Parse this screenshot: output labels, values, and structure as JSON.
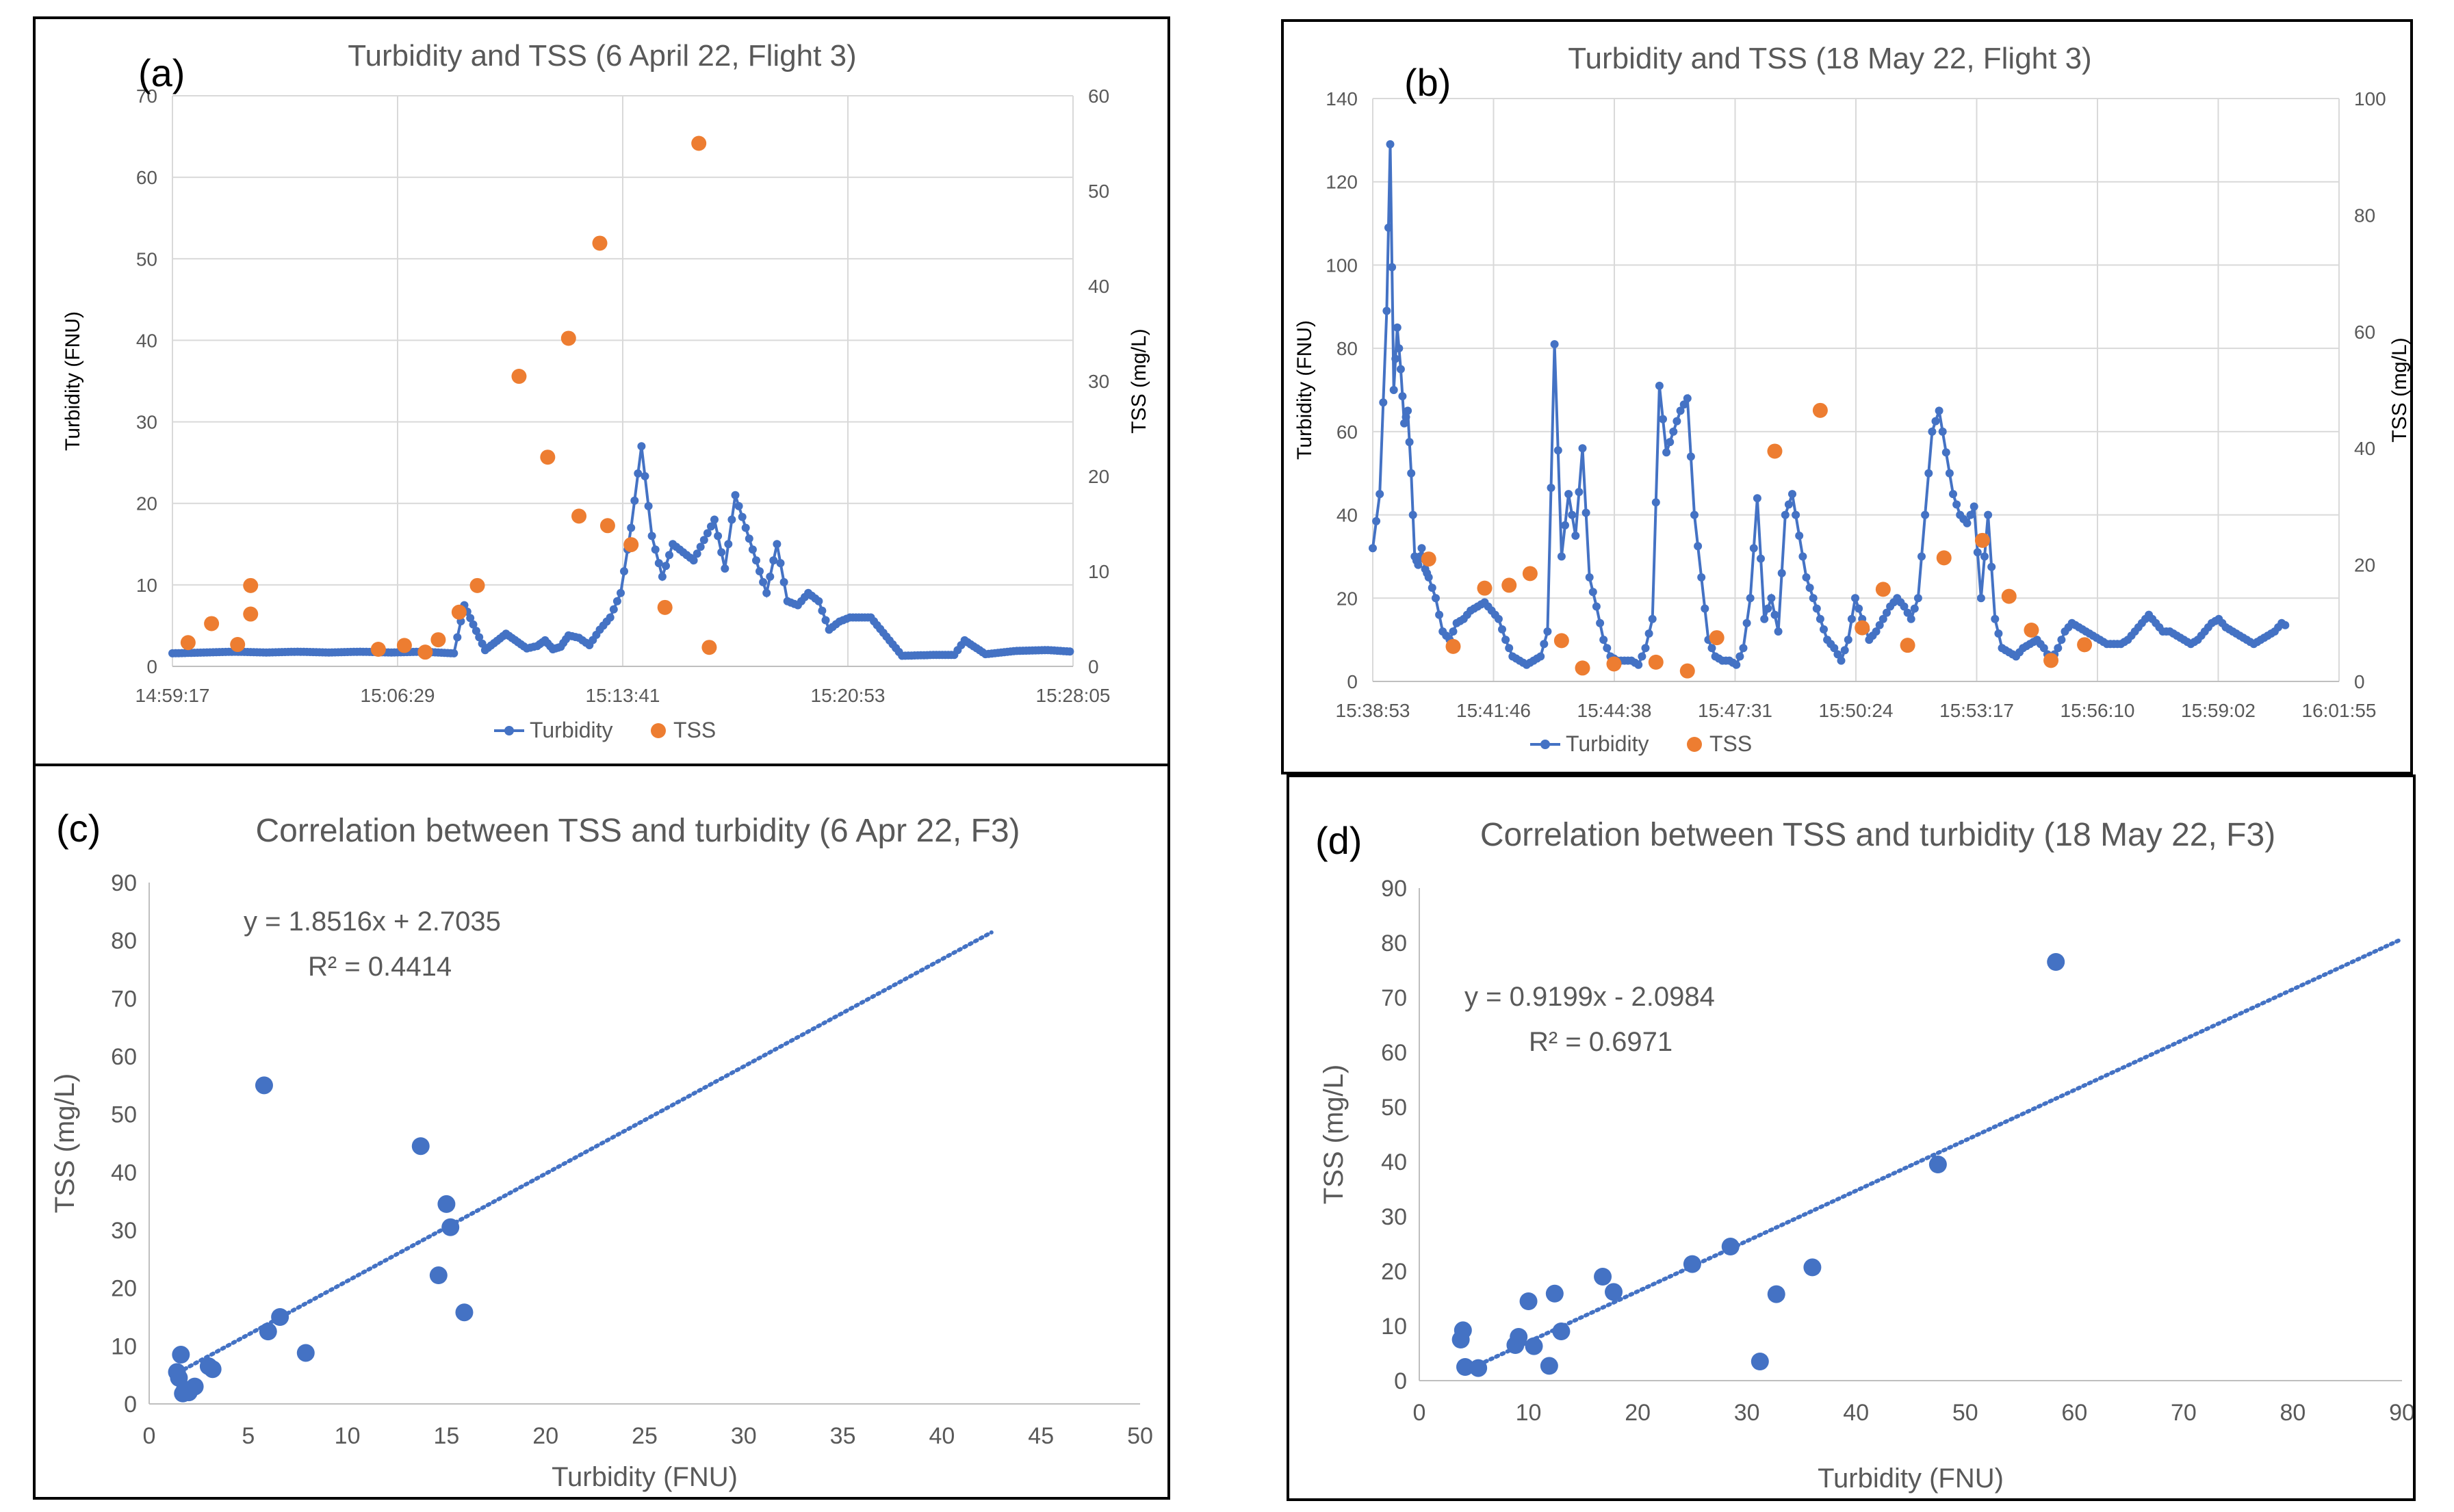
{
  "colors": {
    "turbidity": "#4472C4",
    "tss": "#ED7D31",
    "grid": "#d9d9d9",
    "text": "#595959"
  },
  "chart_data": [
    {
      "type": "line",
      "panel_letter": "(a)",
      "title": "Turbidity and TSS (6 April 22, Flight 3)",
      "ylabel": "Turbidity (FNU)",
      "y2label": "TSS (mg/L)",
      "ylim": [
        0,
        70
      ],
      "y2lim": [
        0,
        60
      ],
      "yticks": [
        "0",
        "10",
        "20",
        "30",
        "40",
        "50",
        "60",
        "70"
      ],
      "y2ticks": [
        "0",
        "10",
        "20",
        "30",
        "40",
        "50",
        "60"
      ],
      "xticks": [
        "14:59:17",
        "15:06:29",
        "15:13:41",
        "15:20:53",
        "15:28:05"
      ],
      "xlim_s": [
        0,
        1728
      ],
      "legend": [
        "Turbidity",
        "TSS"
      ],
      "series": [
        {
          "name": "Turbidity",
          "type": "line",
          "x_s": [
            0,
            60,
            120,
            180,
            240,
            300,
            360,
            420,
            480,
            540,
            560,
            600,
            640,
            680,
            700,
            715,
            730,
            745,
            760,
            780,
            800,
            820,
            840,
            860,
            880,
            900,
            920,
            940,
            960,
            980,
            1000,
            1020,
            1040,
            1060,
            1080,
            1100,
            1120,
            1140,
            1160,
            1180,
            1200,
            1220,
            1240,
            1260,
            1280,
            1300,
            1340,
            1400,
            1460,
            1500,
            1520,
            1560,
            1620,
            1680,
            1728
          ],
          "values": [
            1.6,
            1.7,
            1.8,
            1.7,
            1.8,
            1.7,
            1.8,
            1.7,
            1.8,
            1.6,
            7.5,
            2.0,
            4.0,
            2.2,
            2.5,
            3.2,
            2.1,
            2.4,
            3.8,
            3.5,
            2.6,
            4.5,
            6.0,
            9.0,
            17.0,
            27.0,
            16.0,
            11.0,
            15.0,
            14.0,
            13.0,
            15.5,
            18.0,
            12.0,
            21.0,
            17.0,
            13.0,
            9.0,
            15.0,
            8.0,
            7.5,
            9.0,
            8.0,
            4.5,
            5.5,
            6.0,
            6.0,
            1.3,
            1.4,
            1.4,
            3.2,
            1.5,
            1.9,
            2.0,
            1.8
          ]
        },
        {
          "name": "TSS",
          "type": "scatter",
          "axis": "secondary",
          "x_s": [
            30,
            75,
            125,
            150,
            150,
            395,
            445,
            485,
            510,
            550,
            585,
            665,
            720,
            760,
            780,
            820,
            835,
            880,
            945,
            1010,
            1030
          ],
          "values": [
            2.5,
            4.5,
            2.3,
            5.5,
            8.5,
            1.8,
            2.2,
            1.5,
            2.8,
            5.7,
            8.5,
            30.5,
            22.0,
            34.5,
            15.8,
            44.5,
            14.8,
            12.8,
            6.2,
            55.0,
            2.0
          ]
        }
      ]
    },
    {
      "type": "line",
      "panel_letter": "(b)",
      "title": "Turbidity and TSS (18 May 22, Flight 3)",
      "ylabel": "Turbidity (FNU)",
      "y2label": "TSS (mg/L)",
      "ylim": [
        0,
        140
      ],
      "y2lim": [
        0,
        100
      ],
      "yticks": [
        "0",
        "20",
        "40",
        "60",
        "80",
        "100",
        "120",
        "140"
      ],
      "y2ticks": [
        "0",
        "20",
        "40",
        "60",
        "80",
        "100"
      ],
      "xticks": [
        "15:38:53",
        "15:41:46",
        "15:44:38",
        "15:47:31",
        "15:50:24",
        "15:53:17",
        "15:56:10",
        "15:59:02",
        "16:01:55"
      ],
      "xlim_s": [
        0,
        1382
      ],
      "legend": [
        "Turbidity",
        "TSS"
      ],
      "series": [
        {
          "name": "Turbidity",
          "type": "line",
          "x_s": [
            0,
            10,
            20,
            25,
            30,
            35,
            40,
            45,
            50,
            55,
            60,
            65,
            70,
            75,
            80,
            90,
            100,
            110,
            120,
            130,
            140,
            150,
            160,
            170,
            180,
            190,
            200,
            210,
            220,
            230,
            240,
            250,
            260,
            270,
            280,
            290,
            300,
            310,
            320,
            330,
            340,
            350,
            360,
            370,
            380,
            390,
            400,
            410,
            420,
            430,
            440,
            450,
            460,
            470,
            480,
            490,
            500,
            510,
            520,
            530,
            540,
            550,
            560,
            570,
            580,
            590,
            600,
            610,
            620,
            630,
            640,
            650,
            660,
            670,
            680,
            690,
            700,
            710,
            720,
            730,
            740,
            750,
            760,
            770,
            780,
            790,
            800,
            810,
            820,
            830,
            840,
            850,
            860,
            870,
            880,
            890,
            900,
            910,
            920,
            930,
            940,
            950,
            960,
            970,
            980,
            990,
            1000,
            1010,
            1020,
            1030,
            1040,
            1050,
            1060,
            1070,
            1080,
            1090,
            1100,
            1110,
            1120,
            1130,
            1140,
            1150,
            1160,
            1170,
            1180,
            1190,
            1200,
            1210,
            1220,
            1230,
            1240,
            1250,
            1260,
            1270,
            1280,
            1290,
            1300,
            1310
          ],
          "values": [
            32,
            45,
            89,
            129,
            70,
            85,
            75,
            62,
            65,
            50,
            30,
            28,
            32,
            27,
            25,
            20,
            12,
            10,
            14,
            15,
            17,
            18,
            19,
            17,
            15,
            10,
            6,
            5,
            4,
            5,
            6,
            12,
            81,
            30,
            45,
            35,
            56,
            25,
            18,
            10,
            6,
            5,
            5,
            5,
            4,
            8,
            15,
            71,
            55,
            60,
            65,
            68,
            40,
            25,
            10,
            6,
            5,
            5,
            4,
            8,
            20,
            44,
            15,
            20,
            12,
            40,
            45,
            35,
            25,
            20,
            15,
            10,
            8,
            5,
            10,
            20,
            15,
            10,
            12,
            15,
            18,
            20,
            18,
            15,
            20,
            40,
            60,
            65,
            55,
            45,
            40,
            38,
            42,
            20,
            40,
            15,
            8,
            7,
            6,
            8,
            9,
            10,
            8,
            5,
            8,
            12,
            14,
            13,
            12,
            11,
            10,
            9,
            9,
            9,
            10,
            12,
            14,
            16,
            14,
            12,
            12,
            11,
            10,
            9,
            10,
            12,
            14,
            15,
            13,
            12,
            11,
            10,
            9,
            10,
            11,
            12,
            14,
            13
          ]
        },
        {
          "name": "TSS",
          "type": "scatter",
          "axis": "secondary",
          "x_s": [
            80,
            115,
            160,
            195,
            225,
            270,
            300,
            345,
            405,
            450,
            492,
            575,
            640,
            700,
            730,
            765,
            817,
            872,
            910,
            942,
            970,
            1018
          ],
          "values": [
            21,
            6,
            16,
            16.5,
            18.5,
            7,
            2.3,
            3,
            3.3,
            1.8,
            7.5,
            39.5,
            46.5,
            9.2,
            15.8,
            6.2,
            21.2,
            24.2,
            14.6,
            8.8,
            3.6,
            6.3
          ]
        }
      ]
    },
    {
      "type": "scatter",
      "panel_letter": "(c)",
      "title": "Correlation between TSS and turbidity (6 Apr 22, F3)",
      "xlabel": "Turbidity (FNU)",
      "ylabel": "TSS (mg/L)",
      "xlim": [
        0,
        50
      ],
      "ylim": [
        0,
        90
      ],
      "xticks": [
        "0",
        "5",
        "10",
        "15",
        "20",
        "25",
        "30",
        "35",
        "40",
        "45",
        "50"
      ],
      "yticks": [
        "0",
        "10",
        "20",
        "30",
        "40",
        "50",
        "60",
        "70",
        "80",
        "90"
      ],
      "equation": "y = 1.8516x + 2.7035",
      "r2": "R² = 0.4414",
      "trendline": {
        "slope": 1.8516,
        "intercept": 2.7035,
        "x_range": [
          1.5,
          42.5
        ]
      },
      "x": [
        1.4,
        1.6,
        1.5,
        1.7,
        2.0,
        1.8,
        2.3,
        3.0,
        3.2,
        5.8,
        6.0,
        6.6,
        7.9,
        13.7,
        14.6,
        15.0,
        15.2,
        15.9
      ],
      "y": [
        5.5,
        8.5,
        4.5,
        1.8,
        2.0,
        2.5,
        3.0,
        6.5,
        6.0,
        55.0,
        12.5,
        15.0,
        8.8,
        44.5,
        22.2,
        34.5,
        30.5,
        15.8
      ]
    },
    {
      "type": "scatter",
      "panel_letter": "(d)",
      "title": "Correlation between TSS and turbidity (18 May 22, F3)",
      "xlabel": "Turbidity (FNU)",
      "ylabel": "TSS (mg/L)",
      "xlim": [
        0,
        90
      ],
      "ylim": [
        0,
        90
      ],
      "xticks": [
        "0",
        "10",
        "20",
        "30",
        "40",
        "50",
        "60",
        "70",
        "80",
        "90"
      ],
      "yticks": [
        "0",
        "10",
        "20",
        "30",
        "40",
        "50",
        "60",
        "70",
        "80",
        "90"
      ],
      "equation": "y = 0.9199x - 2.0984",
      "r2": "R² = 0.6971",
      "trendline": {
        "slope": 0.9199,
        "intercept": -2.0984,
        "x_range": [
          5.5,
          90
        ]
      },
      "x": [
        3.8,
        4.0,
        4.2,
        5.4,
        8.8,
        9.1,
        10.0,
        10.5,
        11.9,
        12.4,
        13.0,
        16.8,
        17.8,
        25.0,
        28.5,
        31.2,
        32.7,
        36.0,
        47.5,
        58.3
      ],
      "y": [
        7.5,
        9.2,
        2.5,
        2.3,
        6.5,
        8.0,
        14.5,
        6.3,
        2.7,
        15.9,
        9.0,
        19.0,
        16.2,
        21.3,
        24.5,
        3.5,
        15.8,
        20.7,
        39.5,
        76.5
      ]
    }
  ]
}
